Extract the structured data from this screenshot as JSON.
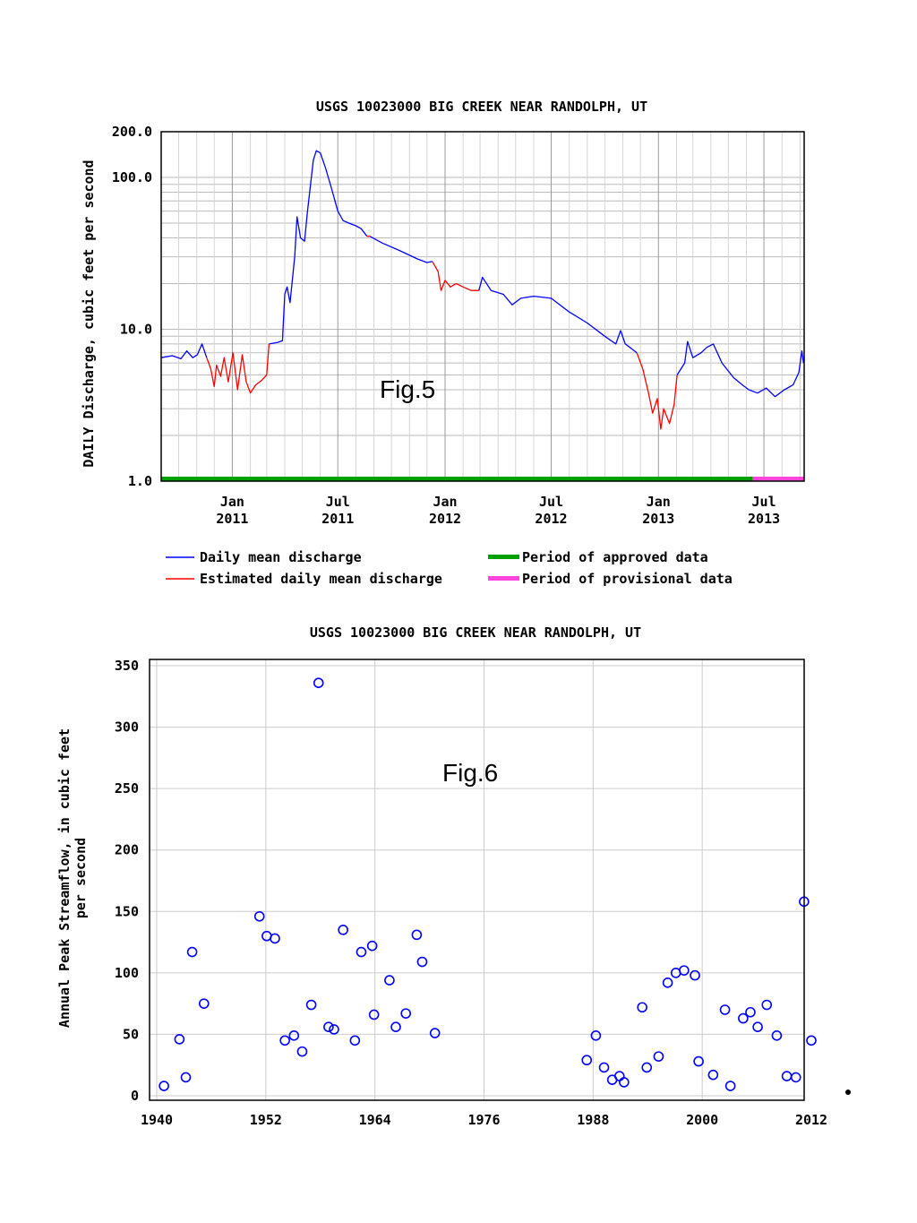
{
  "colors": {
    "daily": "#0000ff",
    "estimated": "#ff0000",
    "approved": "#00a000",
    "provisional": "#ff44dd",
    "grid": "#bbbbbb",
    "peak_marker": "#0000ff"
  },
  "chart_data": [
    {
      "type": "line",
      "title": "USGS 10023000 BIG CREEK NEAR RANDOLPH, UT",
      "ylabel": "DAILY Discharge, cubic feet per second",
      "xlabel": "",
      "yscale": "log",
      "ylim": [
        1.0,
        200.0
      ],
      "xlim": [
        "2010-09-01",
        "2013-09-08"
      ],
      "yticks": [
        "1.0",
        "10.0",
        "100.0",
        "200.0"
      ],
      "xticks": [
        {
          "value": "2011-01-01",
          "line1": "Jan",
          "line2": "2011"
        },
        {
          "value": "2011-07-01",
          "line1": "Jul",
          "line2": "2011"
        },
        {
          "value": "2012-01-01",
          "line1": "Jan",
          "line2": "2012"
        },
        {
          "value": "2012-07-01",
          "line1": "Jul",
          "line2": "2012"
        },
        {
          "value": "2013-01-01",
          "line1": "Jan",
          "line2": "2013"
        },
        {
          "value": "2013-07-01",
          "line1": "Jul",
          "line2": "2013"
        }
      ],
      "grid": true,
      "annotation": "Fig.5",
      "legend": {
        "placement": "bottom",
        "entries": [
          {
            "label": "Daily mean discharge",
            "color": "#0000ff",
            "style": "line"
          },
          {
            "label": "Period of approved data",
            "color": "#00a000",
            "style": "bar"
          },
          {
            "label": "Estimated daily mean discharge",
            "color": "#ff0000",
            "style": "line"
          },
          {
            "label": "Period of provisional data",
            "color": "#ff44dd",
            "style": "bar"
          }
        ]
      },
      "periods": [
        {
          "name": "Period of approved data",
          "start": "2010-09-01",
          "end": "2013-06-12"
        },
        {
          "name": "Period of provisional data",
          "start": "2013-06-12",
          "end": "2013-09-08"
        }
      ],
      "series": [
        {
          "name": "Daily mean discharge",
          "segments": [
            [
              [
                "2010-09-01",
                6.5
              ],
              [
                "2010-09-20",
                6.7
              ],
              [
                "2010-10-05",
                6.4
              ],
              [
                "2010-10-15",
                7.2
              ],
              [
                "2010-10-25",
                6.5
              ],
              [
                "2010-11-02",
                6.8
              ],
              [
                "2010-11-10",
                8.0
              ],
              [
                "2010-11-18",
                6.5
              ]
            ],
            [
              [
                "2011-03-05",
                8.0
              ],
              [
                "2011-03-20",
                8.2
              ],
              [
                "2011-03-28",
                8.4
              ],
              [
                "2011-04-01",
                17.0
              ],
              [
                "2011-04-05",
                19.0
              ],
              [
                "2011-04-10",
                15.0
              ],
              [
                "2011-04-18",
                30.0
              ],
              [
                "2011-04-22",
                55.0
              ],
              [
                "2011-04-28",
                40.0
              ],
              [
                "2011-05-05",
                38.0
              ],
              [
                "2011-05-10",
                60.0
              ],
              [
                "2011-05-20",
                130.0
              ],
              [
                "2011-05-25",
                150.0
              ],
              [
                "2011-06-01",
                145.0
              ],
              [
                "2011-06-10",
                115.0
              ],
              [
                "2011-06-20",
                85.0
              ],
              [
                "2011-07-01",
                60.0
              ],
              [
                "2011-07-10",
                52.0
              ],
              [
                "2011-07-20",
                50.0
              ],
              [
                "2011-08-01",
                48.0
              ],
              [
                "2011-08-10",
                46.0
              ],
              [
                "2011-08-20",
                41.0
              ]
            ],
            [
              [
                "2012-02-28",
                18.0
              ],
              [
                "2012-03-05",
                22.0
              ],
              [
                "2012-03-20",
                18.0
              ],
              [
                "2012-04-10",
                17.0
              ],
              [
                "2012-04-25",
                14.5
              ],
              [
                "2012-05-10",
                16.0
              ],
              [
                "2012-06-01",
                16.5
              ],
              [
                "2012-07-01",
                16.0
              ],
              [
                "2012-08-01",
                13.0
              ],
              [
                "2012-09-01",
                11.0
              ],
              [
                "2012-10-01",
                9.0
              ],
              [
                "2012-10-20",
                8.0
              ],
              [
                "2012-10-28",
                9.8
              ],
              [
                "2012-11-05",
                8.0
              ],
              [
                "2012-11-15",
                7.5
              ],
              [
                "2012-11-25",
                7.0
              ]
            ],
            [
              [
                "2013-02-02",
                5.0
              ],
              [
                "2013-02-15",
                6.0
              ],
              [
                "2013-02-20",
                8.3
              ],
              [
                "2013-03-01",
                6.5
              ],
              [
                "2013-03-15",
                7.0
              ],
              [
                "2013-03-25",
                7.6
              ],
              [
                "2013-04-05",
                8.0
              ],
              [
                "2013-04-20",
                6.0
              ],
              [
                "2013-05-10",
                4.8
              ],
              [
                "2013-05-25",
                4.3
              ],
              [
                "2013-06-05",
                4.0
              ],
              [
                "2013-06-20",
                3.8
              ],
              [
                "2013-07-05",
                4.1
              ],
              [
                "2013-07-20",
                3.6
              ],
              [
                "2013-08-05",
                4.0
              ],
              [
                "2013-08-20",
                4.3
              ],
              [
                "2013-08-30",
                5.2
              ],
              [
                "2013-09-04",
                7.2
              ],
              [
                "2013-09-07",
                6.0
              ]
            ]
          ]
        },
        {
          "name": "Estimated daily mean discharge",
          "segments": [
            [
              [
                "2010-11-18",
                6.5
              ],
              [
                "2010-11-25",
                5.5
              ],
              [
                "2010-12-01",
                4.2
              ],
              [
                "2010-12-05",
                5.8
              ],
              [
                "2010-12-12",
                4.9
              ],
              [
                "2010-12-18",
                6.5
              ],
              [
                "2010-12-25",
                4.5
              ],
              [
                "2011-01-02",
                7.0
              ],
              [
                "2011-01-10",
                4.0
              ],
              [
                "2011-01-18",
                6.8
              ],
              [
                "2011-01-25",
                4.5
              ],
              [
                "2011-02-01",
                3.8
              ],
              [
                "2011-02-10",
                4.3
              ],
              [
                "2011-02-20",
                4.6
              ],
              [
                "2011-03-01",
                5.0
              ],
              [
                "2011-03-05",
                8.0
              ]
            ],
            [
              [
                "2011-08-20",
                41.0
              ],
              [
                "2011-08-25",
                41.0
              ]
            ],
            [
              [
                "2011-12-10",
                28.0
              ],
              [
                "2011-12-20",
                24.0
              ],
              [
                "2011-12-25",
                18.0
              ],
              [
                "2012-01-01",
                21.0
              ],
              [
                "2012-01-10",
                19.0
              ],
              [
                "2012-01-20",
                20.0
              ],
              [
                "2012-02-01",
                19.0
              ],
              [
                "2012-02-15",
                18.0
              ],
              [
                "2012-02-28",
                18.0
              ]
            ],
            [
              [
                "2012-11-25",
                7.0
              ],
              [
                "2012-12-05",
                5.5
              ],
              [
                "2012-12-15",
                3.8
              ],
              [
                "2012-12-22",
                2.8
              ],
              [
                "2012-12-30",
                3.5
              ],
              [
                "2013-01-05",
                2.2
              ],
              [
                "2013-01-10",
                3.0
              ],
              [
                "2013-01-20",
                2.4
              ],
              [
                "2013-01-28",
                3.2
              ],
              [
                "2013-02-02",
                5.0
              ]
            ]
          ]
        },
        {
          "name": "Daily mean discharge",
          "segments": [
            [
              [
                "2011-08-25",
                41.0
              ],
              [
                "2011-09-15",
                37.0
              ],
              [
                "2011-10-15",
                33.0
              ],
              [
                "2011-11-15",
                29.0
              ],
              [
                "2011-12-01",
                27.5
              ],
              [
                "2011-12-10",
                28.0
              ]
            ]
          ]
        }
      ]
    },
    {
      "type": "scatter",
      "title": "USGS 10023000 BIG CREEK NEAR RANDOLPH, UT",
      "ylabel": "Annual Peak Streamflow, in cubic feet per second",
      "xlabel": "",
      "xlim": [
        1940,
        2012
      ],
      "ylim": [
        0,
        350
      ],
      "xticks": [
        1940,
        1952,
        1964,
        1976,
        1988,
        2000,
        2012
      ],
      "yticks": [
        0,
        50,
        100,
        150,
        200,
        250,
        300,
        350
      ],
      "grid": true,
      "annotation": "Fig.6",
      "points": [
        [
          1940.8,
          8
        ],
        [
          1942.5,
          46
        ],
        [
          1943.2,
          15
        ],
        [
          1943.9,
          117
        ],
        [
          1945.2,
          75
        ],
        [
          1951.3,
          146
        ],
        [
          1952.1,
          130
        ],
        [
          1953.0,
          128
        ],
        [
          1954.1,
          45
        ],
        [
          1955.1,
          49
        ],
        [
          1956.0,
          36
        ],
        [
          1957.0,
          74
        ],
        [
          1957.8,
          336
        ],
        [
          1958.9,
          56
        ],
        [
          1959.5,
          54
        ],
        [
          1960.5,
          135
        ],
        [
          1961.8,
          45
        ],
        [
          1962.5,
          117
        ],
        [
          1963.7,
          122
        ],
        [
          1963.9,
          66
        ],
        [
          1965.6,
          94
        ],
        [
          1966.3,
          56
        ],
        [
          1967.4,
          67
        ],
        [
          1968.6,
          131
        ],
        [
          1969.2,
          109
        ],
        [
          1970.6,
          51
        ],
        [
          1987.3,
          29
        ],
        [
          1988.3,
          49
        ],
        [
          1989.2,
          23
        ],
        [
          1990.1,
          13
        ],
        [
          1990.9,
          16
        ],
        [
          1991.4,
          11
        ],
        [
          1993.4,
          72
        ],
        [
          1993.9,
          23
        ],
        [
          1995.2,
          32
        ],
        [
          1996.2,
          92
        ],
        [
          1997.1,
          100
        ],
        [
          1998.0,
          102
        ],
        [
          1999.2,
          98
        ],
        [
          1999.6,
          28
        ],
        [
          2001.2,
          17
        ],
        [
          2002.5,
          70
        ],
        [
          2003.1,
          8
        ],
        [
          2004.5,
          63
        ],
        [
          2005.3,
          68
        ],
        [
          2006.1,
          56
        ],
        [
          2007.1,
          74
        ],
        [
          2008.2,
          49
        ],
        [
          2009.3,
          16
        ],
        [
          2010.3,
          15
        ],
        [
          2011.2,
          158
        ],
        [
          2012.0,
          45
        ]
      ]
    }
  ]
}
